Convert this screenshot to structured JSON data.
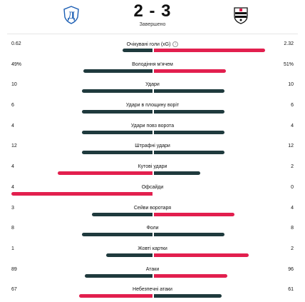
{
  "match": {
    "home_team_crest_icon": "dynamo-kyiv-crest-icon",
    "away_team_crest_icon": "besiktas-crest-icon",
    "score": "2 - 3",
    "status": "Завершено"
  },
  "colors": {
    "win": "#e21f4e",
    "neutral": "#1f3a3d",
    "loss": "#1f3a3d"
  },
  "stats": [
    {
      "label": "Очікувані голи (xG)",
      "home": "0.62",
      "away": "2.32",
      "home_share": 0.21,
      "away_share": 0.79,
      "has_info": true
    },
    {
      "label": "Володіння м'ячем",
      "home": "49%",
      "away": "51%",
      "home_share": 0.49,
      "away_share": 0.51,
      "has_info": false
    },
    {
      "label": "Удари",
      "home": "10",
      "away": "10",
      "home_share": 0.5,
      "away_share": 0.5,
      "has_info": false
    },
    {
      "label": "Удари в площину воріт",
      "home": "6",
      "away": "6",
      "home_share": 0.5,
      "away_share": 0.5,
      "has_info": false
    },
    {
      "label": "Удари повз ворота",
      "home": "4",
      "away": "4",
      "home_share": 0.5,
      "away_share": 0.5,
      "has_info": false
    },
    {
      "label": "Штрафні удари",
      "home": "12",
      "away": "12",
      "home_share": 0.5,
      "away_share": 0.5,
      "has_info": false
    },
    {
      "label": "Кутові удари",
      "home": "4",
      "away": "2",
      "home_share": 0.67,
      "away_share": 0.33,
      "has_info": false
    },
    {
      "label": "Офсайди",
      "home": "4",
      "away": "0",
      "home_share": 1.0,
      "away_share": 0.0,
      "has_info": false
    },
    {
      "label": "Сейви воротаря",
      "home": "3",
      "away": "4",
      "home_share": 0.43,
      "away_share": 0.57,
      "has_info": false
    },
    {
      "label": "Фоли",
      "home": "8",
      "away": "8",
      "home_share": 0.5,
      "away_share": 0.5,
      "has_info": false
    },
    {
      "label": "Жовті картки",
      "home": "1",
      "away": "2",
      "home_share": 0.33,
      "away_share": 0.67,
      "has_info": false
    },
    {
      "label": "Атаки",
      "home": "89",
      "away": "96",
      "home_share": 0.48,
      "away_share": 0.52,
      "has_info": false
    },
    {
      "label": "Небезпечні атаки",
      "home": "67",
      "away": "61",
      "home_share": 0.52,
      "away_share": 0.48,
      "has_info": false
    }
  ]
}
